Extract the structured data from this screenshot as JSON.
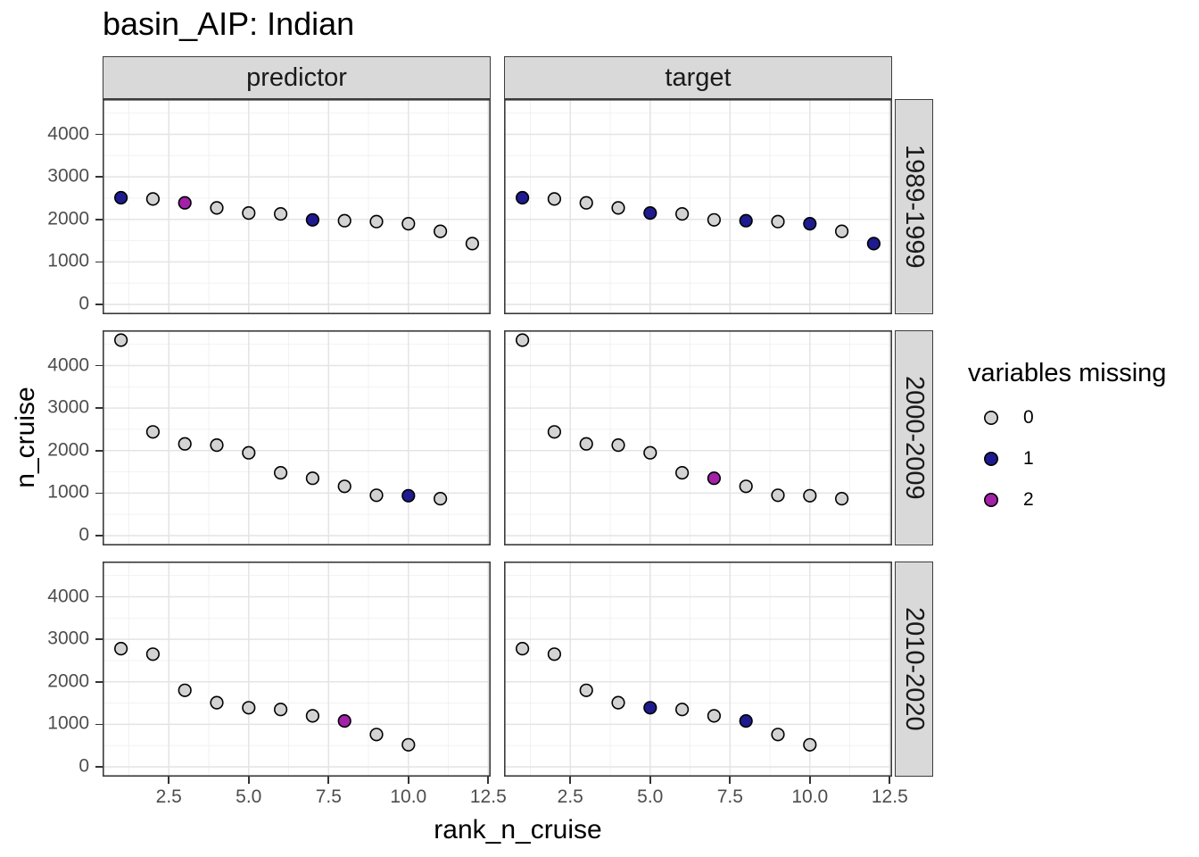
{
  "chart_data": {
    "type": "scatter",
    "title": "basin_AIP: Indian",
    "xlabel": "rank_n_cruise",
    "ylabel": "n_cruise",
    "facet_columns": [
      "predictor",
      "target"
    ],
    "facet_rows": [
      "1989-1999",
      "2000-2009",
      "2010-2020"
    ],
    "x_tick_labels": [
      "2.5",
      "5.0",
      "7.5",
      "10.0",
      "12.5"
    ],
    "x_tick_values": [
      2.5,
      5.0,
      7.5,
      10.0,
      12.5
    ],
    "x_minor": [
      1.25,
      3.75,
      6.25,
      8.75,
      11.25
    ],
    "y_tick_labels": [
      "0",
      "1000",
      "2000",
      "3000",
      "4000"
    ],
    "y_tick_values": [
      0,
      1000,
      2000,
      3000,
      4000
    ],
    "y_minor": [
      500,
      1500,
      2500,
      3500,
      4500
    ],
    "xlim": [
      0.425,
      12.575
    ],
    "ylim": [
      -230,
      4830
    ],
    "grid": true,
    "legend": {
      "title": "variables missing",
      "position": "right",
      "entries": [
        {
          "label": "0",
          "color": "#d3d3d3"
        },
        {
          "label": "1",
          "color": "#1e1b8e"
        },
        {
          "label": "2",
          "color": "#a321a8"
        }
      ]
    },
    "point_style": {
      "stroke": "#000000",
      "radius": 6.8,
      "fill_by": "variables missing"
    },
    "panels": [
      {
        "facet_col": "predictor",
        "facet_row": "1989-1999",
        "points": [
          [
            1,
            2510,
            1
          ],
          [
            2,
            2480,
            0
          ],
          [
            3,
            2390,
            2
          ],
          [
            4,
            2270,
            0
          ],
          [
            5,
            2150,
            0
          ],
          [
            6,
            2130,
            0
          ],
          [
            7,
            1990,
            1
          ],
          [
            8,
            1970,
            0
          ],
          [
            9,
            1950,
            0
          ],
          [
            10,
            1900,
            0
          ],
          [
            11,
            1720,
            0
          ],
          [
            12,
            1430,
            0
          ]
        ]
      },
      {
        "facet_col": "target",
        "facet_row": "1989-1999",
        "points": [
          [
            1,
            2510,
            1
          ],
          [
            2,
            2480,
            0
          ],
          [
            3,
            2390,
            0
          ],
          [
            4,
            2270,
            0
          ],
          [
            5,
            2150,
            1
          ],
          [
            6,
            2130,
            0
          ],
          [
            7,
            1990,
            0
          ],
          [
            8,
            1970,
            1
          ],
          [
            9,
            1950,
            0
          ],
          [
            10,
            1900,
            1
          ],
          [
            11,
            1720,
            0
          ],
          [
            12,
            1430,
            1
          ]
        ]
      },
      {
        "facet_col": "predictor",
        "facet_row": "2000-2009",
        "points": [
          [
            1,
            4600,
            0
          ],
          [
            2,
            2440,
            0
          ],
          [
            3,
            2160,
            0
          ],
          [
            4,
            2130,
            0
          ],
          [
            5,
            1950,
            0
          ],
          [
            6,
            1480,
            0
          ],
          [
            7,
            1350,
            0
          ],
          [
            8,
            1160,
            0
          ],
          [
            9,
            950,
            0
          ],
          [
            10,
            940,
            1
          ],
          [
            11,
            870,
            0
          ]
        ]
      },
      {
        "facet_col": "target",
        "facet_row": "2000-2009",
        "points": [
          [
            1,
            4600,
            0
          ],
          [
            2,
            2440,
            0
          ],
          [
            3,
            2160,
            0
          ],
          [
            4,
            2130,
            0
          ],
          [
            5,
            1950,
            0
          ],
          [
            6,
            1480,
            0
          ],
          [
            7,
            1350,
            2
          ],
          [
            8,
            1160,
            0
          ],
          [
            9,
            950,
            0
          ],
          [
            10,
            940,
            0
          ],
          [
            11,
            870,
            0
          ]
        ]
      },
      {
        "facet_col": "predictor",
        "facet_row": "2010-2020",
        "points": [
          [
            1,
            2780,
            0
          ],
          [
            2,
            2650,
            0
          ],
          [
            3,
            1800,
            0
          ],
          [
            4,
            1510,
            0
          ],
          [
            5,
            1390,
            0
          ],
          [
            6,
            1350,
            0
          ],
          [
            7,
            1200,
            0
          ],
          [
            8,
            1080,
            2
          ],
          [
            9,
            760,
            0
          ],
          [
            10,
            520,
            0
          ]
        ]
      },
      {
        "facet_col": "target",
        "facet_row": "2010-2020",
        "points": [
          [
            1,
            2780,
            0
          ],
          [
            2,
            2650,
            0
          ],
          [
            3,
            1800,
            0
          ],
          [
            4,
            1510,
            0
          ],
          [
            5,
            1390,
            1
          ],
          [
            6,
            1350,
            0
          ],
          [
            7,
            1200,
            0
          ],
          [
            8,
            1080,
            1
          ],
          [
            9,
            760,
            0
          ],
          [
            10,
            520,
            0
          ]
        ]
      }
    ]
  },
  "colors": {
    "strip_bg": "#d9d9d9",
    "strip_border": "#3b3b3b",
    "panel_border": "#3b3b3b",
    "grid_major": "#e4e4e4",
    "grid_minor": "#f0f0f0",
    "tick_mark": "#333333",
    "tick_text": "#4d4d4d"
  }
}
